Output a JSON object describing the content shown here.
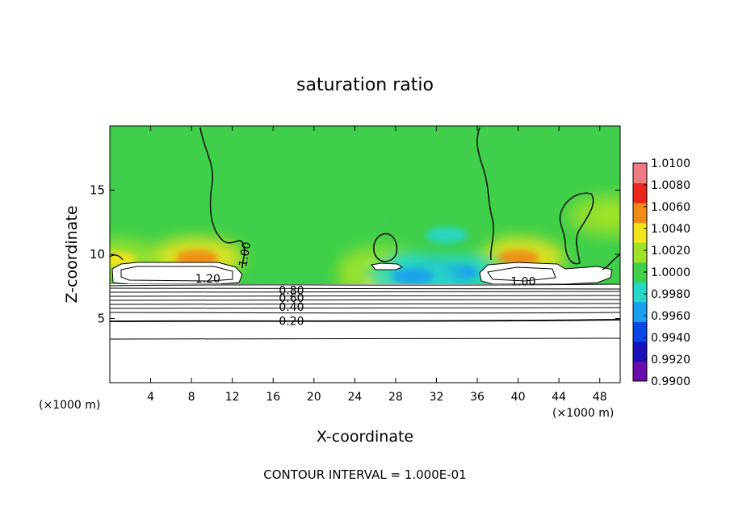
{
  "chart_data": {
    "type": "heatmap",
    "title": "saturation ratio",
    "xlabel": "X-coordinate",
    "ylabel": "Z-coordinate",
    "x_unit_label": "(×1000 m)",
    "x_ticks": [
      4,
      8,
      12,
      16,
      20,
      24,
      28,
      32,
      36,
      40,
      44,
      48
    ],
    "y_ticks": [
      5,
      10,
      15
    ],
    "xlim": [
      0,
      50
    ],
    "ylim": [
      0,
      20
    ],
    "footer": "CONTOUR INTERVAL = 1.000E-01",
    "colorbar": {
      "range": [
        0.99,
        1.01
      ],
      "tick_values": [
        0.99,
        0.992,
        0.994,
        0.996,
        0.998,
        1.0,
        1.002,
        1.004,
        1.006,
        1.008,
        1.01
      ],
      "tick_labels": [
        "0.9900",
        "0.9920",
        "0.9940",
        "0.9960",
        "0.9980",
        "1.0000",
        "1.0020",
        "1.0040",
        "1.0060",
        "1.0080",
        "1.0100"
      ],
      "colors": [
        "#6a0dad",
        "#1a10b8",
        "#0a47e6",
        "#1aa0ee",
        "#26d6c6",
        "#3fcf4a",
        "#9ee22a",
        "#f2e41c",
        "#f28a16",
        "#e8281e",
        "#f07a84"
      ]
    },
    "contour_labels": [
      {
        "text": "1.20",
        "x": 9.6,
        "z": 8.1
      },
      {
        "text": "1.00",
        "x": 13.2,
        "z": 10.0,
        "rotate": -80
      },
      {
        "text": "1.00",
        "x": 40.5,
        "z": 7.9
      },
      {
        "text": "0.80",
        "x": 17.8,
        "z": 7.2
      },
      {
        "text": "0.60",
        "x": 17.8,
        "z": 6.6
      },
      {
        "text": "0.40",
        "x": 17.8,
        "z": 5.9
      },
      {
        "text": "0.20",
        "x": 17.8,
        "z": 4.8
      }
    ],
    "background_level": 1.0,
    "hot_spots": [
      {
        "x": 8.5,
        "z": 9.7,
        "level": 1.006
      },
      {
        "x": 40.0,
        "z": 9.7,
        "level": 1.006
      },
      {
        "x": 27.0,
        "z": 9.0,
        "level": 1.004
      },
      {
        "x": 26.9,
        "z": 7.9,
        "level": 1.005
      },
      {
        "x": 0.5,
        "z": 9.6,
        "level": 1.004
      },
      {
        "x": 49.5,
        "z": 13.0,
        "level": 1.003
      }
    ],
    "cold_spots": [
      {
        "x": 31.8,
        "z": 8.8,
        "level": 0.9945
      },
      {
        "x": 34.0,
        "z": 8.6,
        "level": 0.995
      },
      {
        "x": 29.7,
        "z": 8.3,
        "level": 0.996
      },
      {
        "x": 33.0,
        "z": 11.5,
        "level": 0.998
      }
    ]
  }
}
